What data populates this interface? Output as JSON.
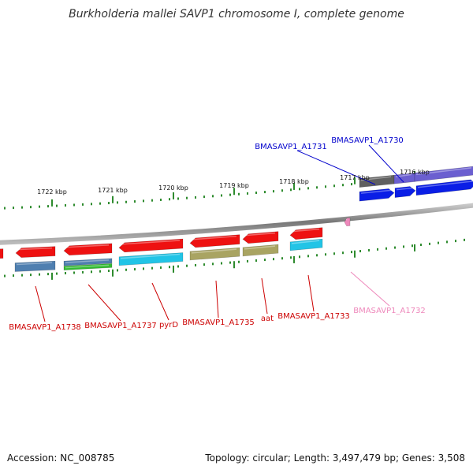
{
  "title": "Burkholderia mallei SAVP1 chromosome I, complete genome",
  "footer": {
    "accession": "Accession: NC_008785",
    "topology": "Topology: circular; Length: 3,497,479 bp; Genes: 3,508"
  },
  "colors": {
    "tick": "#2e8b2e",
    "red_gene": "#ee1111",
    "blue_gene": "#0a1ee6",
    "purple_gene": "#6b5fd0",
    "grey_gene": "#606060",
    "teal_gene": "#22c4e6",
    "steel_gene": "#4f7fb0",
    "olive_gene": "#a9a462",
    "green_gene": "#33bb33",
    "pink_gene": "#ee88bb",
    "red_label": "#cc0000",
    "blue_label": "#0000cc",
    "pink_label": "#ee88bb"
  },
  "scale_labels": [
    "1722 kbp",
    "1721 kbp",
    "1720 kbp",
    "1719 kbp",
    "1718 kbp",
    "1717 kbp",
    "1716 kbp"
  ],
  "gene_labels": {
    "a1731": "BMASAVP1_A1731",
    "a1730": "BMASAVP1_A1730",
    "a1738": "BMASAVP1_A1738",
    "a1737": "BMASAVP1_A1737",
    "pyrd": "pyrD",
    "a1735": "BMASAVP1_A1735",
    "aat": "aat",
    "a1733": "BMASAVP1_A1733",
    "a1732": "BMASAVP1_A1732"
  }
}
